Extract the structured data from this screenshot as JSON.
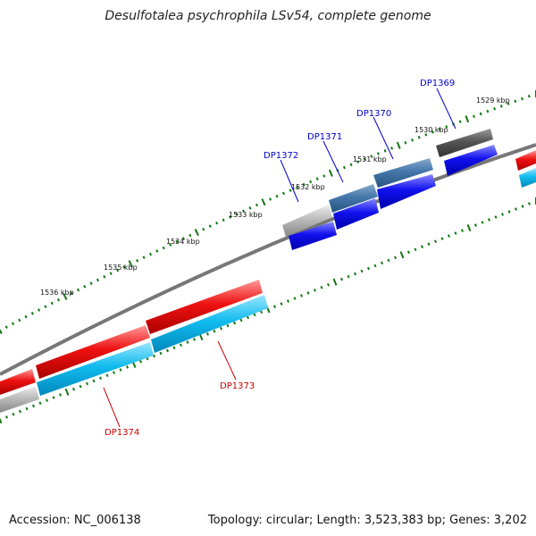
{
  "title": "Desulfotalea psychrophila LSv54, complete genome",
  "footer": {
    "accession": "Accession: NC_006138",
    "summary": "Topology: circular; Length: 3,523,383 bp; Genes: 3,202"
  },
  "kbp_labels": [
    "1529 kbp",
    "1530 kbp",
    "1531 kbp",
    "1532 kbp",
    "1533 kbp",
    "1534 kbp",
    "1535 kbp",
    "1536 kbp"
  ],
  "gene_labels": {
    "forward": [
      "DP1369",
      "DP1370",
      "DP1371",
      "DP1372"
    ],
    "reverse": [
      "DP1373",
      "DP1374"
    ]
  },
  "colors": {
    "forward_label": "#0000cc",
    "reverse_label": "#cc0000",
    "red_gene": "#ee1111",
    "blue_gene": "#1111ee",
    "cyan_gene": "#11bbee",
    "steel_gene": "#4477aa",
    "gray_gene": "#bbbbbb",
    "dark_gene": "#555555",
    "backbone": "#777777",
    "tick": "#117711"
  }
}
